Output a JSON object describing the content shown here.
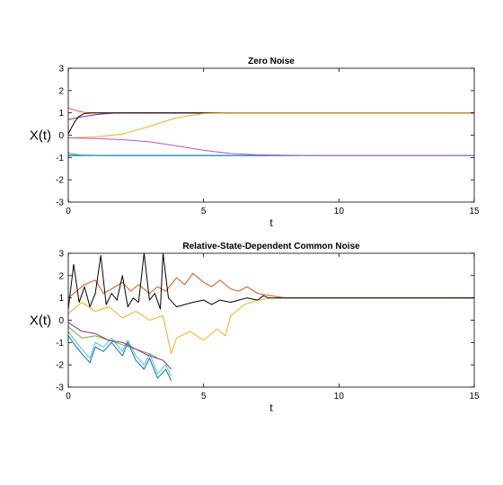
{
  "chart_data": [
    {
      "type": "line",
      "title": "Zero Noise",
      "xlabel": "t",
      "ylabel": "X(t)",
      "xlim": [
        0,
        15
      ],
      "ylim": [
        -3,
        3
      ],
      "xticks": [
        0,
        5,
        10,
        15
      ],
      "yticks": [
        -3,
        -2,
        -1,
        0,
        1,
        2,
        3
      ],
      "grid": false,
      "series": [
        {
          "color": "#e8553a",
          "x": [
            0,
            0.3,
            0.6,
            1.0,
            1.5,
            15
          ],
          "y": [
            1.22,
            1.1,
            1.02,
            1.0,
            1.0,
            1.0
          ]
        },
        {
          "color": "#7e2f8e",
          "x": [
            0,
            0.2,
            0.5,
            1.0,
            1.5,
            2.0,
            15
          ],
          "y": [
            0.7,
            0.75,
            0.82,
            0.92,
            0.98,
            1.0,
            1.0
          ]
        },
        {
          "color": "#000000",
          "x": [
            0,
            0.1,
            0.25,
            0.4,
            0.6,
            0.9,
            15
          ],
          "y": [
            0.05,
            0.3,
            0.62,
            0.85,
            0.97,
            1.0,
            1.0
          ]
        },
        {
          "color": "#edb120",
          "x": [
            0,
            1.0,
            2.0,
            3.0,
            4.0,
            5.0,
            6.0,
            15
          ],
          "y": [
            -0.12,
            -0.08,
            0.05,
            0.4,
            0.78,
            0.97,
            1.0,
            1.0
          ]
        },
        {
          "color": "#77ac30",
          "x": [
            0,
            0.5,
            1.5,
            15
          ],
          "y": [
            -0.8,
            -0.9,
            -0.91,
            -0.91
          ]
        },
        {
          "color": "#4dbeee",
          "x": [
            0,
            0.5,
            1.5,
            15
          ],
          "y": [
            -0.88,
            -0.9,
            -0.91,
            -0.91
          ]
        },
        {
          "color": "#0072bd",
          "x": [
            0,
            0.5,
            1.5,
            15
          ],
          "y": [
            -0.92,
            -0.91,
            -0.91,
            -0.91
          ]
        },
        {
          "color": "#b259c8",
          "x": [
            0,
            1.0,
            2.0,
            3.0,
            4.0,
            5.0,
            6.0,
            7.0,
            8.0,
            9.0,
            15
          ],
          "y": [
            -0.12,
            -0.15,
            -0.2,
            -0.3,
            -0.48,
            -0.68,
            -0.82,
            -0.88,
            -0.9,
            -0.91,
            -0.91
          ]
        }
      ]
    },
    {
      "type": "line",
      "title": "Relative-State-Dependent Common Noise",
      "xlabel": "t",
      "ylabel": "X(t)",
      "xlim": [
        0,
        15
      ],
      "ylim": [
        -3,
        3
      ],
      "xticks": [
        0,
        5,
        10,
        15
      ],
      "yticks": [
        -3,
        -2,
        -1,
        0,
        1,
        2,
        3
      ],
      "grid": false,
      "series": [
        {
          "color": "#0072bd",
          "x": [
            0,
            0.3,
            0.5,
            0.8,
            1.0,
            1.3,
            1.6,
            2.0,
            2.2,
            2.5,
            2.8,
            3.0,
            3.3,
            3.6,
            3.8
          ],
          "y": [
            -0.7,
            -1.2,
            -1.5,
            -1.9,
            -1.2,
            -1.4,
            -1.0,
            -1.6,
            -1.0,
            -1.8,
            -2.2,
            -1.7,
            -2.6,
            -2.2,
            -2.7
          ]
        },
        {
          "color": "#4dbeee",
          "x": [
            0,
            0.3,
            0.5,
            0.8,
            1.0,
            1.3,
            1.6,
            2.0,
            2.2,
            2.5,
            2.8,
            3.0,
            3.3,
            3.6,
            3.8
          ],
          "y": [
            -0.5,
            -1.0,
            -1.3,
            -1.7,
            -1.0,
            -1.2,
            -0.8,
            -1.4,
            -0.9,
            -1.6,
            -2.0,
            -1.5,
            -2.4,
            -2.0,
            -2.5
          ]
        },
        {
          "color": "#77ac30",
          "x": [
            0,
            0.5,
            1.0,
            1.5,
            2.0,
            2.5,
            3.0,
            3.3
          ],
          "y": [
            -0.3,
            -0.8,
            -0.7,
            -0.9,
            -1.1,
            -1.3,
            -1.5,
            -1.7
          ]
        },
        {
          "color": "#7e2f8e",
          "x": [
            0,
            0.5,
            1.0,
            1.5,
            2.0,
            2.5,
            3.0,
            3.5,
            3.8
          ],
          "y": [
            -0.1,
            -0.5,
            -0.6,
            -0.9,
            -1.0,
            -1.3,
            -1.6,
            -1.8,
            -2.2
          ]
        },
        {
          "color": "#edb120",
          "x": [
            0,
            0.5,
            1.0,
            1.5,
            2.0,
            2.5,
            3.0,
            3.5,
            3.8,
            4.0,
            4.5,
            5.0,
            5.5,
            5.8,
            6.0,
            6.5,
            7.0,
            7.5,
            8.0,
            15
          ],
          "y": [
            0.3,
            0.8,
            0.4,
            0.6,
            0.1,
            0.4,
            0.0,
            0.2,
            -1.5,
            -0.8,
            -0.5,
            -0.9,
            -0.4,
            -0.7,
            0.2,
            0.7,
            0.9,
            1.0,
            1.0,
            1.0
          ]
        },
        {
          "color": "#d95319",
          "x": [
            0,
            0.3,
            0.6,
            1.0,
            1.3,
            1.6,
            2.0,
            2.3,
            2.6,
            3.0,
            3.3,
            3.6,
            4.0,
            4.3,
            4.6,
            5.0,
            5.3,
            5.6,
            6.0,
            6.3,
            6.6,
            7.0,
            7.5,
            8.0,
            15
          ],
          "y": [
            1.0,
            1.3,
            1.6,
            1.8,
            1.2,
            1.4,
            1.7,
            1.3,
            1.6,
            1.2,
            1.5,
            1.3,
            1.9,
            1.6,
            2.1,
            1.7,
            1.5,
            1.8,
            1.4,
            1.3,
            1.5,
            1.2,
            1.1,
            1.0,
            1.0
          ]
        },
        {
          "color": "#000000",
          "x": [
            0,
            0.2,
            0.4,
            0.6,
            0.8,
            1.0,
            1.2,
            1.4,
            1.6,
            1.8,
            2.0,
            2.2,
            2.4,
            2.6,
            2.8,
            3.0,
            3.2,
            3.4,
            3.5,
            3.7,
            4.0,
            4.3,
            4.6,
            5.0,
            5.3,
            5.6,
            6.0,
            6.3,
            6.6,
            7.0,
            7.2,
            7.4,
            8.0,
            15
          ],
          "y": [
            0.5,
            2.5,
            0.8,
            1.5,
            0.6,
            1.2,
            2.9,
            0.7,
            1.2,
            0.9,
            2.0,
            0.6,
            1.0,
            0.8,
            3.0,
            0.9,
            1.2,
            0.5,
            3.0,
            1.0,
            0.6,
            0.7,
            0.8,
            0.9,
            0.7,
            0.9,
            0.8,
            0.9,
            1.0,
            0.9,
            1.1,
            1.0,
            1.0,
            1.0
          ]
        }
      ]
    }
  ]
}
